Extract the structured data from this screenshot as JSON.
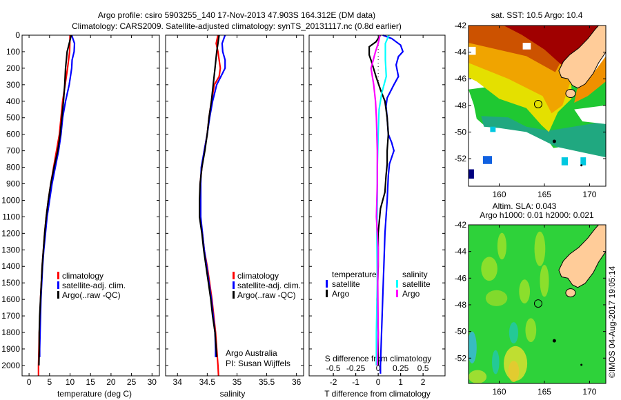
{
  "title": {
    "line1": "Argo profile: csiro 5903255_140 17-Nov-2013 47.903S 164.312E (DM data)",
    "line2": "Climatology: CARS2009. Satellite-adjusted climatology: synTS_20131117.nc (0.8d earlier)"
  },
  "colors": {
    "climatology": "#ff0000",
    "satellite": "#0000ff",
    "argo": "#000000",
    "sal_satellite": "#00ffff",
    "sal_argo": "#ff00ff",
    "land": "#ffcc99"
  },
  "chart_data": [
    {
      "type": "line",
      "name": "temperature",
      "xlabel": "temperature (deg C)",
      "ylabel": "",
      "xlim": [
        -1.7,
        31.8
      ],
      "ylim": [
        2063,
        0
      ],
      "xticks": [
        "0",
        "5",
        "10",
        "15",
        "20",
        "25",
        "30"
      ],
      "yticks": [
        "0",
        "100",
        "200",
        "300",
        "400",
        "500",
        "600",
        "700",
        "800",
        "900",
        "1000",
        "1100",
        "1200",
        "1300",
        "1400",
        "1500",
        "1600",
        "1700",
        "1800",
        "1900",
        "2000"
      ],
      "legend": {
        "placement": "lower-center",
        "entries": [
          "climatology",
          "satellite-adj. clim.",
          "Argo(..raw -QC)"
        ]
      },
      "series": [
        {
          "name": "climatology",
          "color": "#ff0000",
          "points": [
            [
              0,
              10.0
            ],
            [
              100,
              9.9
            ],
            [
              200,
              9.4
            ],
            [
              300,
              8.8
            ],
            [
              400,
              8.2
            ],
            [
              500,
              7.8
            ],
            [
              600,
              7.4
            ],
            [
              700,
              6.7
            ],
            [
              800,
              6.0
            ],
            [
              900,
              5.3
            ],
            [
              1000,
              4.7
            ],
            [
              1100,
              4.2
            ],
            [
              1200,
              3.8
            ],
            [
              1300,
              3.5
            ],
            [
              1400,
              3.2
            ],
            [
              1500,
              3.0
            ],
            [
              1600,
              2.8
            ],
            [
              1700,
              2.7
            ],
            [
              1800,
              2.5
            ],
            [
              1900,
              2.4
            ],
            [
              2000,
              2.3
            ],
            [
              2063,
              2.3
            ]
          ]
        },
        {
          "name": "satellite-adj. clim.",
          "color": "#0000ff",
          "points": [
            [
              0,
              10.4
            ],
            [
              50,
              11.1
            ],
            [
              100,
              11.0
            ],
            [
              150,
              10.5
            ],
            [
              200,
              10.4
            ],
            [
              300,
              9.8
            ],
            [
              400,
              8.9
            ],
            [
              500,
              8.2
            ],
            [
              600,
              7.8
            ],
            [
              700,
              7.2
            ],
            [
              800,
              6.4
            ],
            [
              900,
              5.6
            ],
            [
              1000,
              5.0
            ],
            [
              1100,
              4.4
            ],
            [
              1200,
              4.0
            ],
            [
              1300,
              3.6
            ],
            [
              1400,
              3.3
            ],
            [
              1500,
              3.1
            ],
            [
              1600,
              2.9
            ],
            [
              1700,
              2.8
            ],
            [
              1800,
              2.7
            ],
            [
              1900,
              2.6
            ],
            [
              1950,
              2.6
            ]
          ]
        },
        {
          "name": "Argo(..raw -QC)",
          "color": "#000000",
          "points": [
            [
              0,
              10.3
            ],
            [
              50,
              9.8
            ],
            [
              100,
              9.3
            ],
            [
              200,
              8.9
            ],
            [
              300,
              8.7
            ],
            [
              400,
              8.4
            ],
            [
              500,
              8.0
            ],
            [
              600,
              7.6
            ],
            [
              700,
              7.0
            ],
            [
              800,
              6.1
            ],
            [
              900,
              5.3
            ],
            [
              1000,
              4.7
            ],
            [
              1100,
              4.2
            ],
            [
              1200,
              3.8
            ],
            [
              1300,
              3.5
            ],
            [
              1400,
              3.2
            ],
            [
              1500,
              3.0
            ],
            [
              1600,
              2.8
            ],
            [
              1700,
              2.6
            ],
            [
              1800,
              2.5
            ],
            [
              1900,
              2.5
            ],
            [
              2000,
              2.4
            ]
          ]
        }
      ]
    },
    {
      "type": "line",
      "name": "salinity",
      "xlabel": "salinity",
      "xlim": [
        33.8,
        36.12
      ],
      "ylim": [
        2063,
        0
      ],
      "xticks": [
        "34",
        "34.5",
        "35",
        "35.5",
        "36"
      ],
      "legend": {
        "placement": "lower-right",
        "entries": [
          "climatology",
          "satellite-adj. clim.",
          "Argo(..raw -QC)"
        ]
      },
      "annotation": [
        "Argo Australia",
        "PI: Susan Wijffels"
      ],
      "series": [
        {
          "name": "climatology",
          "color": "#ff0000",
          "points": [
            [
              0,
              34.68
            ],
            [
              50,
              34.65
            ],
            [
              100,
              34.68
            ],
            [
              200,
              34.72
            ],
            [
              250,
              34.7
            ],
            [
              300,
              34.62
            ],
            [
              400,
              34.57
            ],
            [
              500,
              34.53
            ],
            [
              600,
              34.5
            ],
            [
              700,
              34.45
            ],
            [
              800,
              34.41
            ],
            [
              900,
              34.38
            ],
            [
              1000,
              34.38
            ],
            [
              1100,
              34.38
            ],
            [
              1200,
              34.42
            ],
            [
              1300,
              34.45
            ],
            [
              1400,
              34.5
            ],
            [
              1500,
              34.54
            ],
            [
              1600,
              34.58
            ],
            [
              1700,
              34.61
            ],
            [
              1800,
              34.64
            ],
            [
              1900,
              34.66
            ],
            [
              2000,
              34.68
            ],
            [
              2063,
              34.69
            ]
          ]
        },
        {
          "name": "satellite-adj. clim.",
          "color": "#0000ff",
          "points": [
            [
              0,
              34.8
            ],
            [
              50,
              34.75
            ],
            [
              100,
              34.76
            ],
            [
              150,
              34.8
            ],
            [
              200,
              34.8
            ],
            [
              250,
              34.73
            ],
            [
              300,
              34.66
            ],
            [
              400,
              34.59
            ],
            [
              500,
              34.54
            ],
            [
              600,
              34.5
            ],
            [
              700,
              34.45
            ],
            [
              800,
              34.4
            ],
            [
              900,
              34.39
            ],
            [
              1000,
              34.39
            ],
            [
              1100,
              34.39
            ],
            [
              1200,
              34.42
            ],
            [
              1300,
              34.45
            ],
            [
              1400,
              34.49
            ],
            [
              1500,
              34.53
            ],
            [
              1600,
              34.57
            ],
            [
              1700,
              34.6
            ],
            [
              1800,
              34.63
            ],
            [
              1900,
              34.64
            ],
            [
              1950,
              34.64
            ]
          ]
        },
        {
          "name": "Argo(..raw -QC)",
          "color": "#000000",
          "points": [
            [
              0,
              34.7
            ],
            [
              100,
              34.66
            ],
            [
              200,
              34.63
            ],
            [
              300,
              34.6
            ],
            [
              400,
              34.57
            ],
            [
              500,
              34.53
            ],
            [
              600,
              34.5
            ],
            [
              700,
              34.46
            ],
            [
              800,
              34.41
            ],
            [
              900,
              34.38
            ],
            [
              1000,
              34.37
            ],
            [
              1100,
              34.37
            ],
            [
              1200,
              34.41
            ],
            [
              1300,
              34.44
            ],
            [
              1400,
              34.48
            ],
            [
              1500,
              34.52
            ],
            [
              1600,
              34.56
            ],
            [
              1700,
              34.59
            ],
            [
              1800,
              34.63
            ],
            [
              1900,
              34.65
            ],
            [
              1950,
              34.66
            ]
          ]
        }
      ]
    },
    {
      "type": "line",
      "name": "difference",
      "xlabel": "T difference from climatology",
      "xlabel2": "S difference from climatology",
      "xlim": [
        -3.08,
        2.98
      ],
      "ylim": [
        2063,
        0
      ],
      "xticks": [
        "-2",
        "-1",
        "0",
        "1",
        "2"
      ],
      "xticks2": [
        "-0.5",
        "-0.25",
        "0",
        "0.25",
        "0.5"
      ],
      "legend": {
        "placement": "lower-center",
        "temperature_title": "temperature",
        "salinity_title": "salinity",
        "entries": [
          "satellite",
          "Argo"
        ]
      },
      "series": [
        {
          "name": "temperature satellite",
          "color": "#0000ff",
          "units": "T",
          "points": [
            [
              0,
              0.2
            ],
            [
              20,
              0.6
            ],
            [
              60,
              1.0
            ],
            [
              100,
              1.1
            ],
            [
              130,
              0.9
            ],
            [
              180,
              0.8
            ],
            [
              250,
              0.9
            ],
            [
              300,
              0.7
            ],
            [
              380,
              0.4
            ],
            [
              430,
              0.35
            ],
            [
              500,
              0.4
            ],
            [
              600,
              0.45
            ],
            [
              650,
              0.6
            ],
            [
              700,
              0.7
            ],
            [
              780,
              0.5
            ],
            [
              850,
              0.45
            ],
            [
              1000,
              0.4
            ],
            [
              1100,
              0.35
            ],
            [
              1200,
              0.3
            ],
            [
              1400,
              0.25
            ],
            [
              1600,
              0.2
            ],
            [
              1800,
              0.15
            ],
            [
              2000,
              0.1
            ],
            [
              2050,
              0.1
            ]
          ]
        },
        {
          "name": "temperature Argo",
          "color": "#000000",
          "units": "T",
          "points": [
            [
              0,
              0.1
            ],
            [
              40,
              -0.1
            ],
            [
              70,
              -0.4
            ],
            [
              120,
              -0.4
            ],
            [
              160,
              -0.3
            ],
            [
              250,
              -0.1
            ],
            [
              330,
              0.1
            ],
            [
              400,
              0.3
            ],
            [
              500,
              0.4
            ],
            [
              600,
              0.45
            ],
            [
              700,
              0.4
            ],
            [
              780,
              0.4
            ],
            [
              850,
              0.35
            ],
            [
              950,
              0.3
            ],
            [
              1050,
              0.1
            ],
            [
              1200,
              0.0
            ],
            [
              1400,
              0.0
            ],
            [
              1600,
              -0.05
            ],
            [
              1800,
              0.0
            ],
            [
              2000,
              0.0
            ]
          ]
        },
        {
          "name": "salinity satellite",
          "color": "#00ffff",
          "units": "S",
          "points": [
            [
              0,
              0.12
            ],
            [
              50,
              0.08
            ],
            [
              150,
              0.08
            ],
            [
              250,
              0.09
            ],
            [
              350,
              0.04
            ],
            [
              450,
              0.01
            ],
            [
              600,
              0.0
            ],
            [
              800,
              -0.01
            ],
            [
              1000,
              -0.01
            ],
            [
              1200,
              -0.015
            ],
            [
              1500,
              -0.01
            ],
            [
              1800,
              -0.02
            ],
            [
              2000,
              -0.02
            ]
          ]
        },
        {
          "name": "salinity Argo",
          "color": "#ff00ff",
          "units": "S",
          "points": [
            [
              0,
              0.02
            ],
            [
              50,
              0.0
            ],
            [
              100,
              -0.03
            ],
            [
              200,
              -0.08
            ],
            [
              300,
              -0.05
            ],
            [
              400,
              -0.03
            ],
            [
              500,
              -0.02
            ],
            [
              700,
              -0.01
            ],
            [
              900,
              -0.01
            ],
            [
              1100,
              -0.02
            ],
            [
              1300,
              0.0
            ],
            [
              1500,
              -0.005
            ],
            [
              1800,
              0.0
            ],
            [
              2000,
              -0.01
            ]
          ]
        }
      ]
    },
    {
      "type": "heatmap",
      "name": "sst-map",
      "title": "sat. SST: 10.5 Argo: 10.4",
      "xlim": [
        156.6,
        171.8
      ],
      "ylim": [
        -54.07,
        -42
      ],
      "xticks": [
        "160",
        "165",
        "170"
      ],
      "yticks": [
        "-42",
        "-44",
        "-46",
        "-48",
        "-50",
        "-52"
      ],
      "marker": {
        "lon": 164.312,
        "lat": -47.903
      }
    },
    {
      "type": "heatmap",
      "name": "sla-map",
      "title1": "Altim. SLA: 0.043",
      "title2": "Argo h1000: 0.01 h2000: 0.021",
      "xlim": [
        156.6,
        171.8
      ],
      "ylim": [
        -53.9,
        -42
      ],
      "xticks": [
        "160",
        "165",
        "170"
      ],
      "yticks": [
        "-42",
        "-44",
        "-46",
        "-48",
        "-50",
        "-52"
      ],
      "marker": {
        "lon": 164.312,
        "lat": -47.903
      }
    }
  ],
  "stamp": "©IMOS 04-Aug-2017 19:05:14"
}
